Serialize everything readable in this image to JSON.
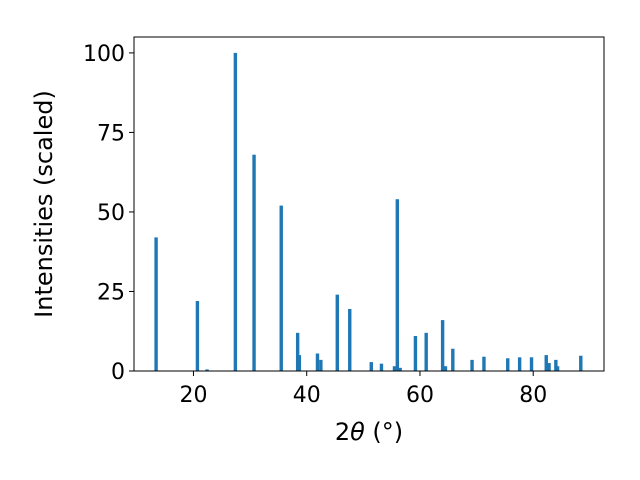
{
  "chart_data": {
    "type": "bar",
    "xlabel_prefix": "2",
    "xlabel_symbol": "θ",
    "xlabel_unit": " (°)",
    "ylabel": "Intensities (scaled)",
    "xlim": [
      9.5,
      92.5
    ],
    "ylim": [
      0,
      105
    ],
    "x_ticks": [
      20,
      40,
      60,
      80
    ],
    "y_ticks": [
      0,
      25,
      50,
      75,
      100
    ],
    "grid": false,
    "bar_width": 0.6,
    "bar_color": "#1f77b4",
    "peaks": [
      {
        "x": 13.4,
        "y": 42
      },
      {
        "x": 20.7,
        "y": 22
      },
      {
        "x": 22.4,
        "y": 0.5
      },
      {
        "x": 27.4,
        "y": 100
      },
      {
        "x": 30.7,
        "y": 68
      },
      {
        "x": 35.5,
        "y": 52
      },
      {
        "x": 38.4,
        "y": 12
      },
      {
        "x": 38.7,
        "y": 5
      },
      {
        "x": 41.9,
        "y": 5.5
      },
      {
        "x": 42.5,
        "y": 3.5
      },
      {
        "x": 45.4,
        "y": 24
      },
      {
        "x": 47.6,
        "y": 19.5
      },
      {
        "x": 51.4,
        "y": 2.8
      },
      {
        "x": 53.2,
        "y": 2.3
      },
      {
        "x": 55.5,
        "y": 1.5
      },
      {
        "x": 56.0,
        "y": 54
      },
      {
        "x": 56.5,
        "y": 1
      },
      {
        "x": 59.2,
        "y": 11
      },
      {
        "x": 61.1,
        "y": 12
      },
      {
        "x": 64.0,
        "y": 16
      },
      {
        "x": 64.5,
        "y": 1.5
      },
      {
        "x": 65.8,
        "y": 7
      },
      {
        "x": 69.2,
        "y": 3.5
      },
      {
        "x": 71.3,
        "y": 4.5
      },
      {
        "x": 75.5,
        "y": 4
      },
      {
        "x": 77.6,
        "y": 4.3
      },
      {
        "x": 79.7,
        "y": 4.3
      },
      {
        "x": 82.3,
        "y": 5
      },
      {
        "x": 82.8,
        "y": 2.5
      },
      {
        "x": 84.0,
        "y": 3.5
      },
      {
        "x": 84.3,
        "y": 1.5
      },
      {
        "x": 88.4,
        "y": 4.8
      }
    ]
  }
}
